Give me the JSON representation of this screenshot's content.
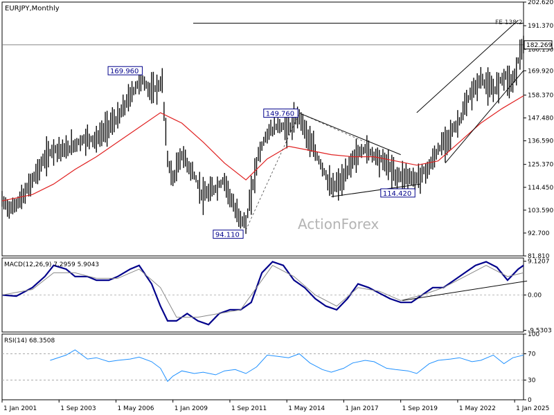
{
  "chart_data": [
    {
      "type": "candlestick",
      "title": "EURJPY,Monthly",
      "ohlc": {
        "open": "183.784",
        "high": "184.668",
        "low": "182.001",
        "close": "182.269"
      },
      "watermark": "ActionForex",
      "y_ticks": [
        "202.620",
        "191.370",
        "180.150",
        "169.920",
        "158.370",
        "147.480",
        "136.590",
        "125.370",
        "114.450",
        "103.590",
        "92.700",
        "81.810"
      ],
      "ylim": [
        81.81,
        202.62
      ],
      "current_price": "182.269",
      "x_ticks": [
        "1 Jan 2001",
        "1 Sep 2003",
        "1 May 2006",
        "1 Jan 2009",
        "1 Sep 2011",
        "1 May 2014",
        "1 Jan 2017",
        "1 Sep 2019",
        "1 May 2022",
        "1 Jan 2025"
      ],
      "x_range": [
        "2001-01",
        "2025-06"
      ],
      "fib_label": "FE 138.2",
      "fib_level": 192.6,
      "annotations": [
        {
          "text": "169.960",
          "date": "2007-07",
          "value": 169.96
        },
        {
          "text": "149.760",
          "date": "2014-12",
          "value": 149.76
        },
        {
          "text": "94.110",
          "date": "2012-06",
          "value": 94.11
        },
        {
          "text": "114.420",
          "date": "2020-05",
          "value": 114.42
        }
      ],
      "series": [
        {
          "name": "price",
          "color": "#0a0a0a",
          "x": [
            "2001-01",
            "2001-06",
            "2002-01",
            "2002-06",
            "2003-01",
            "2003-06",
            "2004-01",
            "2004-06",
            "2005-01",
            "2005-06",
            "2006-01",
            "2006-06",
            "2007-01",
            "2007-07",
            "2008-01",
            "2008-07",
            "2008-10",
            "2009-01",
            "2009-06",
            "2010-01",
            "2010-06",
            "2011-01",
            "2011-06",
            "2011-12",
            "2012-06",
            "2013-01",
            "2013-06",
            "2013-12",
            "2014-06",
            "2014-12",
            "2015-06",
            "2016-01",
            "2016-06",
            "2017-01",
            "2017-06",
            "2018-01",
            "2018-06",
            "2019-01",
            "2019-06",
            "2020-01",
            "2020-05",
            "2021-01",
            "2021-06",
            "2022-01",
            "2022-06",
            "2022-12",
            "2023-06",
            "2024-01",
            "2024-07",
            "2024-12",
            "2025-03",
            "2025-06"
          ],
          "values": [
            108,
            104,
            110,
            118,
            128,
            133,
            132,
            135,
            138,
            137,
            144,
            147,
            158,
            166,
            160,
            164,
            128,
            118,
            130,
            120,
            110,
            114,
            118,
            103,
            97,
            130,
            140,
            144,
            142,
            149,
            136,
            124,
            114,
            118,
            128,
            133,
            130,
            126,
            120,
            120,
            118,
            124,
            132,
            140,
            146,
            158,
            166,
            160,
            168,
            164,
            175,
            182.3
          ]
        },
        {
          "name": "MA",
          "color": "#e02020",
          "x": [
            "2001-01",
            "2002-06",
            "2003-06",
            "2004-06",
            "2005-06",
            "2006-06",
            "2007-06",
            "2008-06",
            "2009-06",
            "2010-06",
            "2011-06",
            "2012-06",
            "2013-06",
            "2014-06",
            "2015-06",
            "2016-06",
            "2017-06",
            "2018-06",
            "2019-06",
            "2020-06",
            "2021-06",
            "2022-06",
            "2023-06",
            "2024-06",
            "2025-06"
          ],
          "values": [
            108,
            111,
            116,
            123,
            129,
            136,
            143,
            150,
            145,
            136,
            126,
            118,
            128,
            134,
            132,
            130,
            129,
            129,
            127,
            125,
            127,
            136,
            145,
            152,
            158
          ]
        },
        {
          "name": "channel-upper",
          "color": "#0a0a0a",
          "x": [
            "2020-06",
            "2025-03"
          ],
          "values": [
            150,
            194
          ]
        },
        {
          "name": "channel-lower",
          "color": "#0a0a0a",
          "x": [
            "2021-10",
            "2025-06"
          ],
          "values": [
            126,
            170
          ]
        },
        {
          "name": "triangle-upper",
          "color": "#0a0a0a",
          "x": [
            "2014-12",
            "2019-09"
          ],
          "values": [
            149.8,
            130
          ]
        },
        {
          "name": "triangle-lower",
          "color": "#0a0a0a",
          "x": [
            "2016-06",
            "2020-08"
          ],
          "values": [
            110,
            116
          ]
        }
      ]
    },
    {
      "type": "line",
      "title": "MACD(12,26,9) 7.2959 5.9043",
      "y_ticks": [
        "9.1207",
        "0.00",
        "-9.5303"
      ],
      "ylim": [
        -10,
        10
      ],
      "series": [
        {
          "name": "macd",
          "color": "#00008b",
          "x": [
            "2001-01",
            "2001-09",
            "2002-06",
            "2003-01",
            "2003-06",
            "2004-01",
            "2004-06",
            "2005-01",
            "2005-06",
            "2006-01",
            "2006-06",
            "2007-01",
            "2007-06",
            "2008-01",
            "2008-06",
            "2008-10",
            "2009-03",
            "2009-09",
            "2010-03",
            "2010-09",
            "2011-03",
            "2011-09",
            "2012-03",
            "2012-09",
            "2013-03",
            "2013-09",
            "2014-03",
            "2014-09",
            "2015-03",
            "2015-09",
            "2016-03",
            "2016-09",
            "2017-03",
            "2017-09",
            "2018-03",
            "2018-09",
            "2019-03",
            "2019-09",
            "2020-03",
            "2020-09",
            "2021-03",
            "2021-09",
            "2022-03",
            "2022-09",
            "2023-03",
            "2023-09",
            "2024-03",
            "2024-09",
            "2025-03",
            "2025-06"
          ],
          "values": [
            0,
            -0.3,
            2,
            5,
            8,
            7,
            5,
            5,
            4,
            4,
            5,
            7,
            8,
            3,
            -3,
            -7,
            -7,
            -5,
            -7,
            -8,
            -5,
            -4,
            -4,
            -2,
            6,
            9,
            8,
            4,
            2,
            -1,
            -3,
            -4,
            -1,
            3,
            2,
            0.5,
            -1,
            -2,
            -2,
            0,
            2,
            2,
            4,
            6,
            8,
            9,
            7.5,
            4,
            7,
            8
          ]
        },
        {
          "name": "signal",
          "color": "#888888",
          "x": [
            "2001-01",
            "2002-06",
            "2003-06",
            "2004-06",
            "2005-06",
            "2006-06",
            "2007-06",
            "2008-06",
            "2009-03",
            "2010-03",
            "2011-03",
            "2012-03",
            "2013-03",
            "2013-09",
            "2014-09",
            "2015-09",
            "2016-09",
            "2017-09",
            "2018-09",
            "2019-09",
            "2020-09",
            "2021-09",
            "2022-09",
            "2023-09",
            "2024-09",
            "2025-06"
          ],
          "values": [
            0,
            1.5,
            6,
            6,
            4.5,
            4.5,
            7,
            2,
            -6,
            -6,
            -5,
            -4,
            4,
            8,
            5,
            0,
            -3,
            2,
            1,
            -1.5,
            0,
            2,
            5,
            8,
            5,
            6
          ]
        },
        {
          "name": "trendline",
          "color": "#0a0a0a",
          "x": [
            "2019-10",
            "2025-08"
          ],
          "values": [
            -1.5,
            3.8
          ]
        }
      ]
    },
    {
      "type": "line",
      "title": "RSI(14) 68.3508",
      "y_ticks": [
        "100",
        "70",
        "30",
        "0"
      ],
      "ylim": [
        0,
        100
      ],
      "series": [
        {
          "name": "rsi",
          "color": "#1e90ff",
          "x": [
            "2003-04",
            "2004-01",
            "2004-06",
            "2005-01",
            "2005-06",
            "2006-01",
            "2006-06",
            "2007-01",
            "2007-06",
            "2008-01",
            "2008-06",
            "2008-10",
            "2009-01",
            "2009-06",
            "2010-01",
            "2010-06",
            "2011-01",
            "2011-06",
            "2011-12",
            "2012-06",
            "2012-12",
            "2013-06",
            "2013-12",
            "2014-06",
            "2014-12",
            "2015-06",
            "2016-01",
            "2016-06",
            "2017-01",
            "2017-06",
            "2018-01",
            "2018-06",
            "2019-01",
            "2019-06",
            "2020-01",
            "2020-06",
            "2021-01",
            "2021-06",
            "2022-01",
            "2022-06",
            "2023-01",
            "2023-06",
            "2024-01",
            "2024-07",
            "2024-12",
            "2025-03",
            "2025-06"
          ],
          "values": [
            60,
            68,
            76,
            62,
            64,
            58,
            60,
            62,
            65,
            58,
            48,
            28,
            36,
            44,
            40,
            42,
            38,
            44,
            46,
            40,
            50,
            68,
            66,
            64,
            70,
            56,
            46,
            42,
            48,
            56,
            60,
            58,
            48,
            46,
            44,
            40,
            55,
            60,
            62,
            64,
            58,
            60,
            68,
            55,
            64,
            66,
            68
          ]
        }
      ]
    }
  ]
}
